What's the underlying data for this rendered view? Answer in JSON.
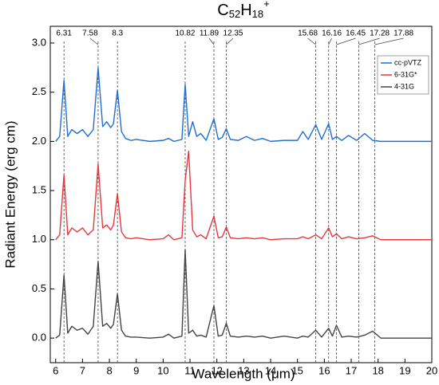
{
  "chart_data": {
    "type": "line",
    "title": [
      "C",
      "52",
      "H",
      "18",
      "+"
    ],
    "x_label": "Wavelength (μm)",
    "y_label": "Radiant Energy (erg cm)",
    "xlim": [
      5.8,
      20
    ],
    "ylim": [
      -0.25,
      3.17
    ],
    "xticks": [
      6,
      7,
      8,
      9,
      10,
      11,
      12,
      13,
      14,
      15,
      16,
      17,
      18,
      19,
      20
    ],
    "yticks": [
      {
        "value": 0,
        "label": "0.0"
      },
      0.5,
      {
        "value": 1,
        "label": "1.0"
      },
      1.5,
      {
        "value": 2,
        "label": "2.0"
      },
      2.5,
      {
        "value": 3,
        "label": "3.0"
      }
    ],
    "annotations": [
      6.31,
      7.58,
      8.3,
      10.82,
      11.89,
      12.35,
      15.68,
      16.16,
      16.45,
      17.28,
      17.88
    ],
    "legend": "upper right",
    "x": [
      6.0,
      6.15,
      6.31,
      6.45,
      6.6,
      6.8,
      7.0,
      7.2,
      7.4,
      7.58,
      7.75,
      7.9,
      8.05,
      8.15,
      8.3,
      8.45,
      8.6,
      8.8,
      9.0,
      9.5,
      10.0,
      10.2,
      10.4,
      10.7,
      10.82,
      10.95,
      11.1,
      11.25,
      11.4,
      11.6,
      11.89,
      12.05,
      12.2,
      12.35,
      12.5,
      12.8,
      13.1,
      13.4,
      13.7,
      14.0,
      14.5,
      15.0,
      15.2,
      15.4,
      15.68,
      15.9,
      16.16,
      16.3,
      16.45,
      16.65,
      16.9,
      17.2,
      17.5,
      17.8,
      18.1,
      18.5,
      19.0,
      19.5,
      20.0
    ],
    "series": [
      {
        "name": "cc-pVTZ",
        "color": "#1f6fd1",
        "values": [
          2.0,
          2.05,
          2.62,
          2.05,
          2.12,
          2.08,
          2.12,
          2.05,
          2.12,
          2.75,
          2.15,
          2.2,
          2.14,
          2.18,
          2.52,
          2.1,
          2.03,
          2.01,
          2.02,
          2.0,
          2.01,
          2.03,
          2.0,
          2.02,
          2.58,
          2.05,
          2.2,
          2.05,
          2.08,
          2.01,
          2.23,
          2.02,
          2.04,
          2.13,
          2.02,
          2.01,
          2.05,
          2.01,
          2.03,
          2.0,
          2.01,
          2.01,
          2.1,
          2.02,
          2.17,
          2.02,
          2.18,
          2.02,
          2.05,
          2.01,
          2.06,
          2.01,
          2.08,
          2.01,
          2.0,
          2.0,
          2.0,
          2.0,
          2.0
        ]
      },
      {
        "name": "6-31G*",
        "color": "#e8383d",
        "values": [
          1.0,
          1.05,
          1.66,
          1.05,
          1.12,
          1.08,
          1.12,
          1.05,
          1.1,
          1.77,
          1.12,
          1.15,
          1.1,
          1.15,
          1.47,
          1.08,
          1.02,
          1.01,
          1.02,
          1.0,
          1.01,
          1.05,
          1.0,
          1.02,
          1.6,
          1.9,
          1.1,
          1.03,
          1.05,
          1.01,
          1.24,
          1.02,
          1.03,
          1.13,
          1.02,
          1.01,
          1.02,
          1.01,
          1.02,
          1.0,
          1.01,
          1.01,
          1.03,
          1.01,
          1.05,
          1.01,
          1.12,
          1.03,
          1.06,
          1.01,
          1.03,
          1.01,
          1.02,
          1.04,
          1.0,
          1.0,
          1.0,
          1.0,
          1.0
        ]
      },
      {
        "name": "4-31G",
        "color": "#444444",
        "values": [
          0.0,
          0.03,
          0.64,
          0.05,
          0.12,
          0.08,
          0.1,
          0.04,
          0.12,
          0.78,
          0.12,
          0.15,
          0.1,
          0.14,
          0.45,
          0.08,
          0.02,
          0.01,
          0.01,
          0.0,
          0.01,
          0.04,
          0.0,
          0.02,
          0.9,
          0.05,
          0.08,
          0.02,
          0.03,
          0.01,
          0.33,
          0.02,
          0.03,
          0.15,
          0.02,
          0.01,
          0.02,
          0.01,
          0.02,
          0.0,
          0.02,
          0.0,
          0.02,
          0.01,
          0.08,
          0.01,
          0.1,
          0.02,
          0.13,
          0.01,
          0.02,
          0.01,
          0.03,
          0.07,
          0.0,
          0.0,
          0.0,
          0.0,
          0.0
        ]
      }
    ]
  }
}
